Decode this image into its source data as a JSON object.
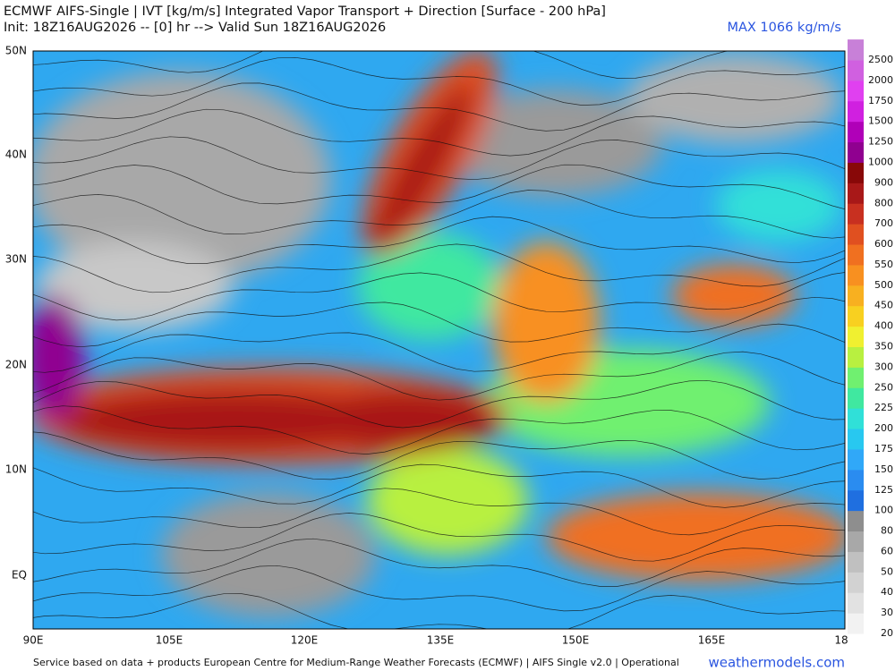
{
  "header": {
    "title": "ECMWF AIFS-Single | IVT [kg/m/s] Integrated Vapor Transport + Direction [Surface - 200 hPa]",
    "init": "Init: 18Z16AUG2026 -- [0] hr --> Valid Sun 18Z16AUG2026",
    "max": "MAX 1066 kg/m/s"
  },
  "lat_labels": [
    "50N",
    "40N",
    "30N",
    "20N",
    "10N",
    "EQ"
  ],
  "lon_labels": [
    "90E",
    "105E",
    "120E",
    "135E",
    "150E",
    "165E",
    "18"
  ],
  "colorbar": {
    "levels": [
      {
        "value": 20,
        "color": "#f2f2f2"
      },
      {
        "value": 30,
        "color": "#e2e2e2"
      },
      {
        "value": 40,
        "color": "#d2d2d2"
      },
      {
        "value": 50,
        "color": "#c0c0c0"
      },
      {
        "value": 60,
        "color": "#a8a8a8"
      },
      {
        "value": 80,
        "color": "#8e8e8e"
      },
      {
        "value": 100,
        "color": "#1f6fe0"
      },
      {
        "value": 125,
        "color": "#2a8cf0"
      },
      {
        "value": 150,
        "color": "#30a8f8"
      },
      {
        "value": 175,
        "color": "#28c8f0"
      },
      {
        "value": 200,
        "color": "#30e0d8"
      },
      {
        "value": 225,
        "color": "#40e8a0"
      },
      {
        "value": 250,
        "color": "#70f070"
      },
      {
        "value": 300,
        "color": "#b8f040"
      },
      {
        "value": 350,
        "color": "#f0f030"
      },
      {
        "value": 400,
        "color": "#f8d020"
      },
      {
        "value": 450,
        "color": "#f8b020"
      },
      {
        "value": 500,
        "color": "#f89020"
      },
      {
        "value": 550,
        "color": "#f07020"
      },
      {
        "value": 600,
        "color": "#e05020"
      },
      {
        "value": 700,
        "color": "#c83020"
      },
      {
        "value": 800,
        "color": "#a81818"
      },
      {
        "value": 900,
        "color": "#880808"
      },
      {
        "value": 1000,
        "color": "#900090"
      },
      {
        "value": 1250,
        "color": "#b000b8"
      },
      {
        "value": 1500,
        "color": "#d020e0"
      },
      {
        "value": 1750,
        "color": "#e040f0"
      },
      {
        "value": 2000,
        "color": "#d060e0"
      },
      {
        "value": 2500,
        "color": "#c880d8"
      }
    ]
  },
  "footer": {
    "credit": "Service based on data + products European Centre for Medium-Range Weather Forecasts (ECMWF) | AIFS Single v2.0 | Operational",
    "site": "weathermodels.com"
  }
}
